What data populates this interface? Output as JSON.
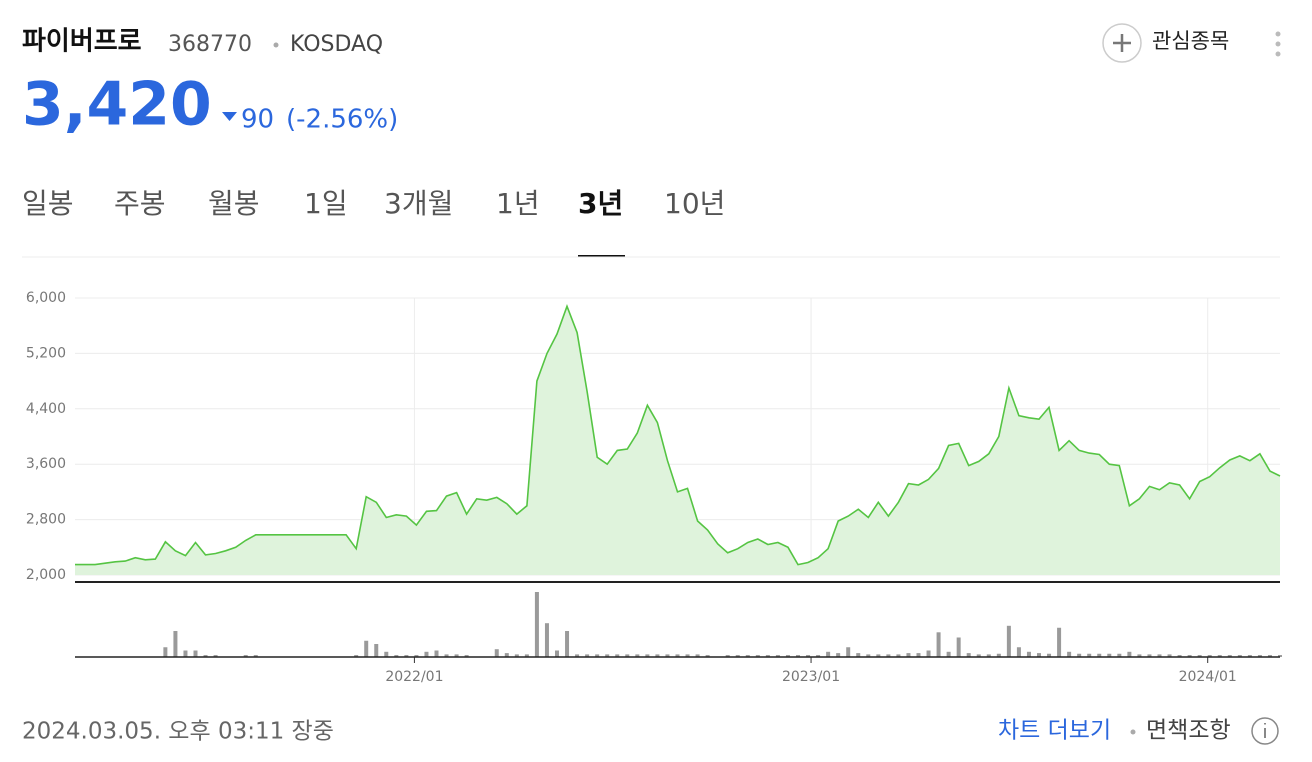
{
  "header": {
    "name": "파이버프로",
    "code": "368770",
    "market": "KOSDAQ",
    "watch": "관심종목"
  },
  "price": {
    "value": "3,420",
    "change": "90",
    "percent": "(-2.56%)"
  },
  "tabs": [
    "일봉",
    "주봉",
    "월봉",
    "1일",
    "3개월",
    "1년",
    "3년",
    "10년"
  ],
  "active_tab": 6,
  "chart_data": {
    "type": "line",
    "color": "#55c443",
    "fill": "#dff3dc",
    "volume_color": "#9a9a9a",
    "grid": true,
    "xlim": [
      0,
      120
    ],
    "xticks": [
      {
        "value": 33.8,
        "label": "2022/01"
      },
      {
        "value": 73.3,
        "label": "2023/01"
      },
      {
        "value": 112.8,
        "label": "2024/01"
      }
    ],
    "ylim": [
      2000,
      6000
    ],
    "yticks": [
      {
        "value": 2000,
        "label": "2,000"
      },
      {
        "value": 2800,
        "label": "2,800"
      },
      {
        "value": 3600,
        "label": "3,600"
      },
      {
        "value": 4400,
        "label": "4,400"
      },
      {
        "value": 5200,
        "label": "5,200"
      },
      {
        "value": 6000,
        "label": "6,000"
      }
    ],
    "values": [
      2150,
      2150,
      2150,
      2170,
      2190,
      2200,
      2250,
      2220,
      2230,
      2480,
      2350,
      2280,
      2470,
      2290,
      2310,
      2350,
      2400,
      2500,
      2580,
      2580,
      2580,
      2580,
      2580,
      2580,
      2580,
      2580,
      2580,
      2580,
      2380,
      3130,
      3050,
      2830,
      2870,
      2850,
      2720,
      2920,
      2930,
      3140,
      3190,
      2880,
      3100,
      3080,
      3120,
      3030,
      2880,
      3000,
      4800,
      5200,
      5480,
      5880,
      5500,
      4650,
      3700,
      3600,
      3800,
      3820,
      4050,
      4450,
      4200,
      3650,
      3200,
      3250,
      2780,
      2650,
      2450,
      2320,
      2380,
      2470,
      2520,
      2440,
      2470,
      2400,
      2150,
      2180,
      2250,
      2380,
      2780,
      2850,
      2950,
      2830,
      3050,
      2850,
      3050,
      3320,
      3300,
      3380,
      3540,
      3870,
      3900,
      3580,
      3640,
      3750,
      4000,
      4700,
      4300,
      4270,
      4250,
      4420,
      3800,
      3940,
      3800,
      3760,
      3740,
      3600,
      3580,
      3000,
      3100,
      3280,
      3230,
      3330,
      3300,
      3100,
      3350,
      3420,
      3550,
      3660,
      3720,
      3650,
      3750,
      3500,
      3430
    ],
    "vlim": [
      0,
      100
    ],
    "volume": [
      0,
      0,
      0,
      0,
      0,
      0,
      0,
      0,
      0,
      15,
      40,
      10,
      10,
      3,
      3,
      0,
      0,
      3,
      3,
      0,
      0,
      0,
      0,
      0,
      0,
      0,
      0,
      0,
      3,
      25,
      20,
      8,
      3,
      3,
      3,
      8,
      10,
      4,
      4,
      3,
      0,
      0,
      12,
      6,
      4,
      4,
      100,
      52,
      10,
      40,
      4,
      4,
      4,
      4,
      4,
      4,
      4,
      4,
      4,
      4,
      4,
      4,
      4,
      3,
      0,
      3,
      3,
      3,
      3,
      3,
      3,
      3,
      3,
      3,
      3,
      8,
      6,
      15,
      6,
      4,
      4,
      4,
      4,
      6,
      6,
      10,
      38,
      8,
      30,
      6,
      4,
      4,
      5,
      48,
      15,
      8,
      6,
      5,
      45,
      8,
      5,
      5,
      5,
      5,
      5,
      8,
      4,
      4,
      4,
      4,
      3,
      3,
      3,
      3,
      3,
      3,
      3,
      3,
      3,
      3,
      3
    ]
  },
  "footer": {
    "timestamp": "2024.03.05. 오후 03:11 장중",
    "more": "차트 더보기",
    "disclaimer": "면책조항"
  }
}
